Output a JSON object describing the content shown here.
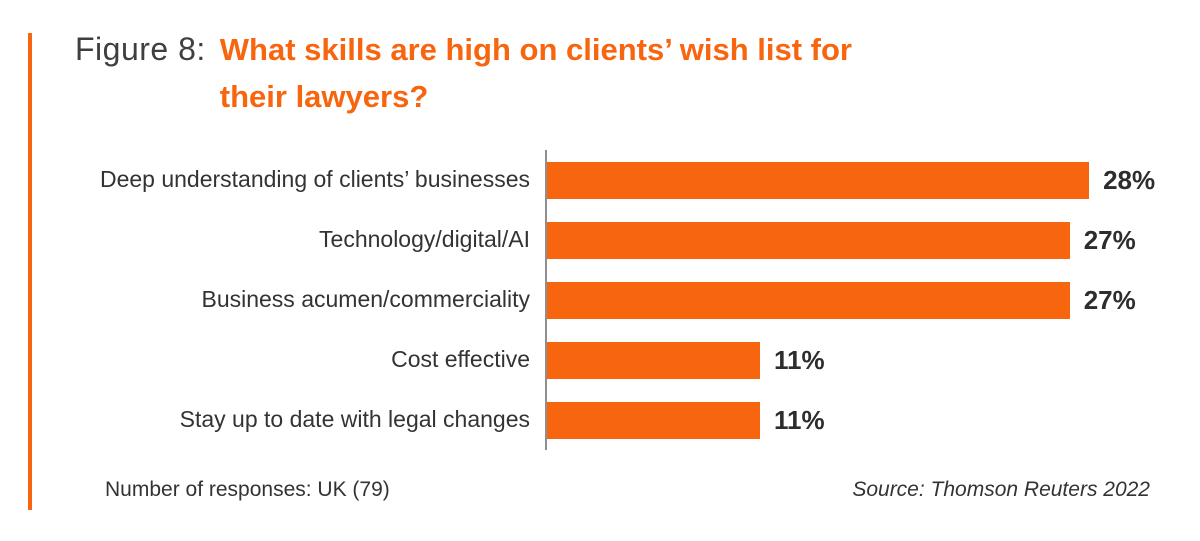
{
  "header": {
    "figure_label": "Figure 8:",
    "title_lines": [
      "What skills are high on clients’ wish list for",
      "their lawyers?"
    ]
  },
  "chart_data": {
    "type": "bar",
    "orientation": "horizontal",
    "title": "What skills are high on clients’ wish list for their lawyers?",
    "categories": [
      "Deep understanding of clients’ businesses",
      "Technology/digital/AI",
      "Business acumen/commerciality",
      "Cost effective",
      "Stay up to date with legal changes"
    ],
    "values": [
      28,
      27,
      27,
      11,
      11
    ],
    "value_labels": [
      "28%",
      "27%",
      "27%",
      "11%",
      "11%"
    ],
    "xlabel": "",
    "ylabel": "",
    "xlim": [
      0,
      30
    ],
    "grid": false,
    "legend": false,
    "bar_color": "#f8650f"
  },
  "footer": {
    "responses_note": "Number of responses: UK (79)",
    "source": "Source: Thomson Reuters 2022"
  },
  "colors": {
    "accent_orange": "#f8650f",
    "figure_label_gray": "#3f3f3f",
    "body_text": "#333333",
    "value_text": "#2d2d2d",
    "axis_gray": "#8f8f8f",
    "background": "#ffffff"
  }
}
